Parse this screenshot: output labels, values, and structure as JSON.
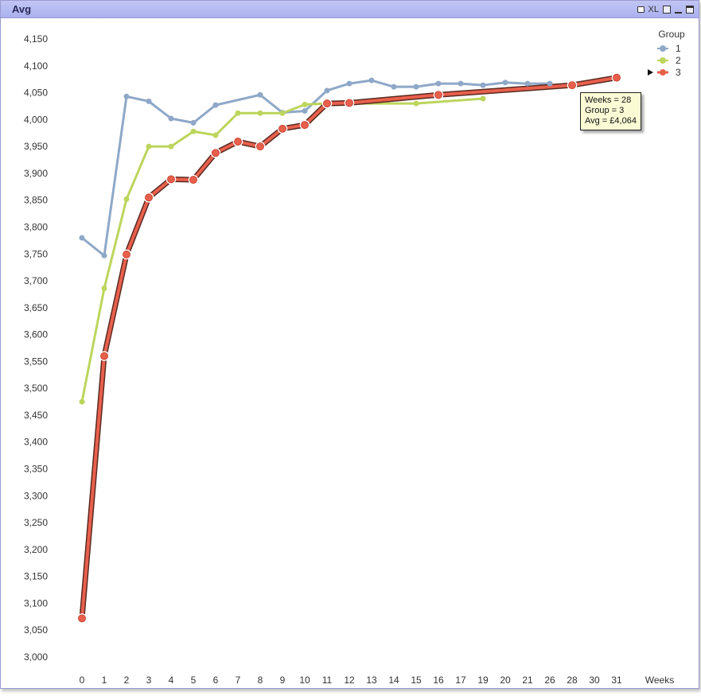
{
  "window": {
    "title": "Avg",
    "icons": [
      "print-icon",
      "xl-icon",
      "maximize-box-icon",
      "minimize-icon",
      "restore-icon"
    ],
    "xl_label": "XL"
  },
  "chart_data": {
    "type": "line",
    "title": "Avg",
    "xlabel": "Weeks",
    "ylabel": "",
    "categories": [
      "0",
      "1",
      "2",
      "3",
      "4",
      "5",
      "6",
      "7",
      "8",
      "9",
      "10",
      "11",
      "12",
      "13",
      "14",
      "15",
      "16",
      "17",
      "19",
      "20",
      "21",
      "26",
      "28",
      "30",
      "31"
    ],
    "ylim": [
      3000,
      4150
    ],
    "yticks": [
      3000,
      3050,
      3100,
      3150,
      3200,
      3250,
      3300,
      3350,
      3400,
      3450,
      3500,
      3550,
      3600,
      3650,
      3700,
      3750,
      3800,
      3850,
      3900,
      3950,
      4000,
      4050,
      4100,
      4150
    ],
    "ytick_labels": [
      "3,000",
      "3,050",
      "3,100",
      "3,150",
      "3,200",
      "3,250",
      "3,300",
      "3,350",
      "3,400",
      "3,450",
      "3,500",
      "3,550",
      "3,600",
      "3,650",
      "3,700",
      "3,750",
      "3,800",
      "3,850",
      "3,900",
      "3,950",
      "4,000",
      "4,050",
      "4,100",
      "4,150"
    ],
    "grid": false,
    "legend": {
      "title": "Group",
      "placement": "top-right",
      "selected": "3"
    },
    "series": [
      {
        "name": "1",
        "color": "#8fa8c8",
        "values": [
          3780,
          3747,
          4043,
          4034,
          4002,
          3994,
          4027,
          null,
          4046,
          4013,
          4016,
          4054,
          4067,
          4073,
          4061,
          4061,
          4067,
          4067,
          4064,
          4069,
          4067,
          4067,
          null,
          null,
          null
        ]
      },
      {
        "name": "2",
        "color": "#bcd55c",
        "values": [
          3475,
          3686,
          3852,
          3950,
          3950,
          3978,
          3971,
          4012,
          4012,
          4012,
          4028,
          4030,
          null,
          null,
          null,
          4030,
          null,
          null,
          4039,
          null,
          null,
          null,
          null,
          null,
          null
        ]
      },
      {
        "name": "3",
        "color": "#e8604c",
        "values": [
          3072,
          3560,
          3749,
          3855,
          3889,
          3888,
          3938,
          3959,
          3950,
          3983,
          3990,
          4030,
          4031,
          null,
          null,
          null,
          4046,
          null,
          null,
          null,
          null,
          null,
          4064,
          null,
          4078
        ]
      }
    ],
    "tooltip": {
      "line1": "Weeks = 28",
      "line2": "Group = 3",
      "line3": "Avg = £4,064"
    }
  }
}
